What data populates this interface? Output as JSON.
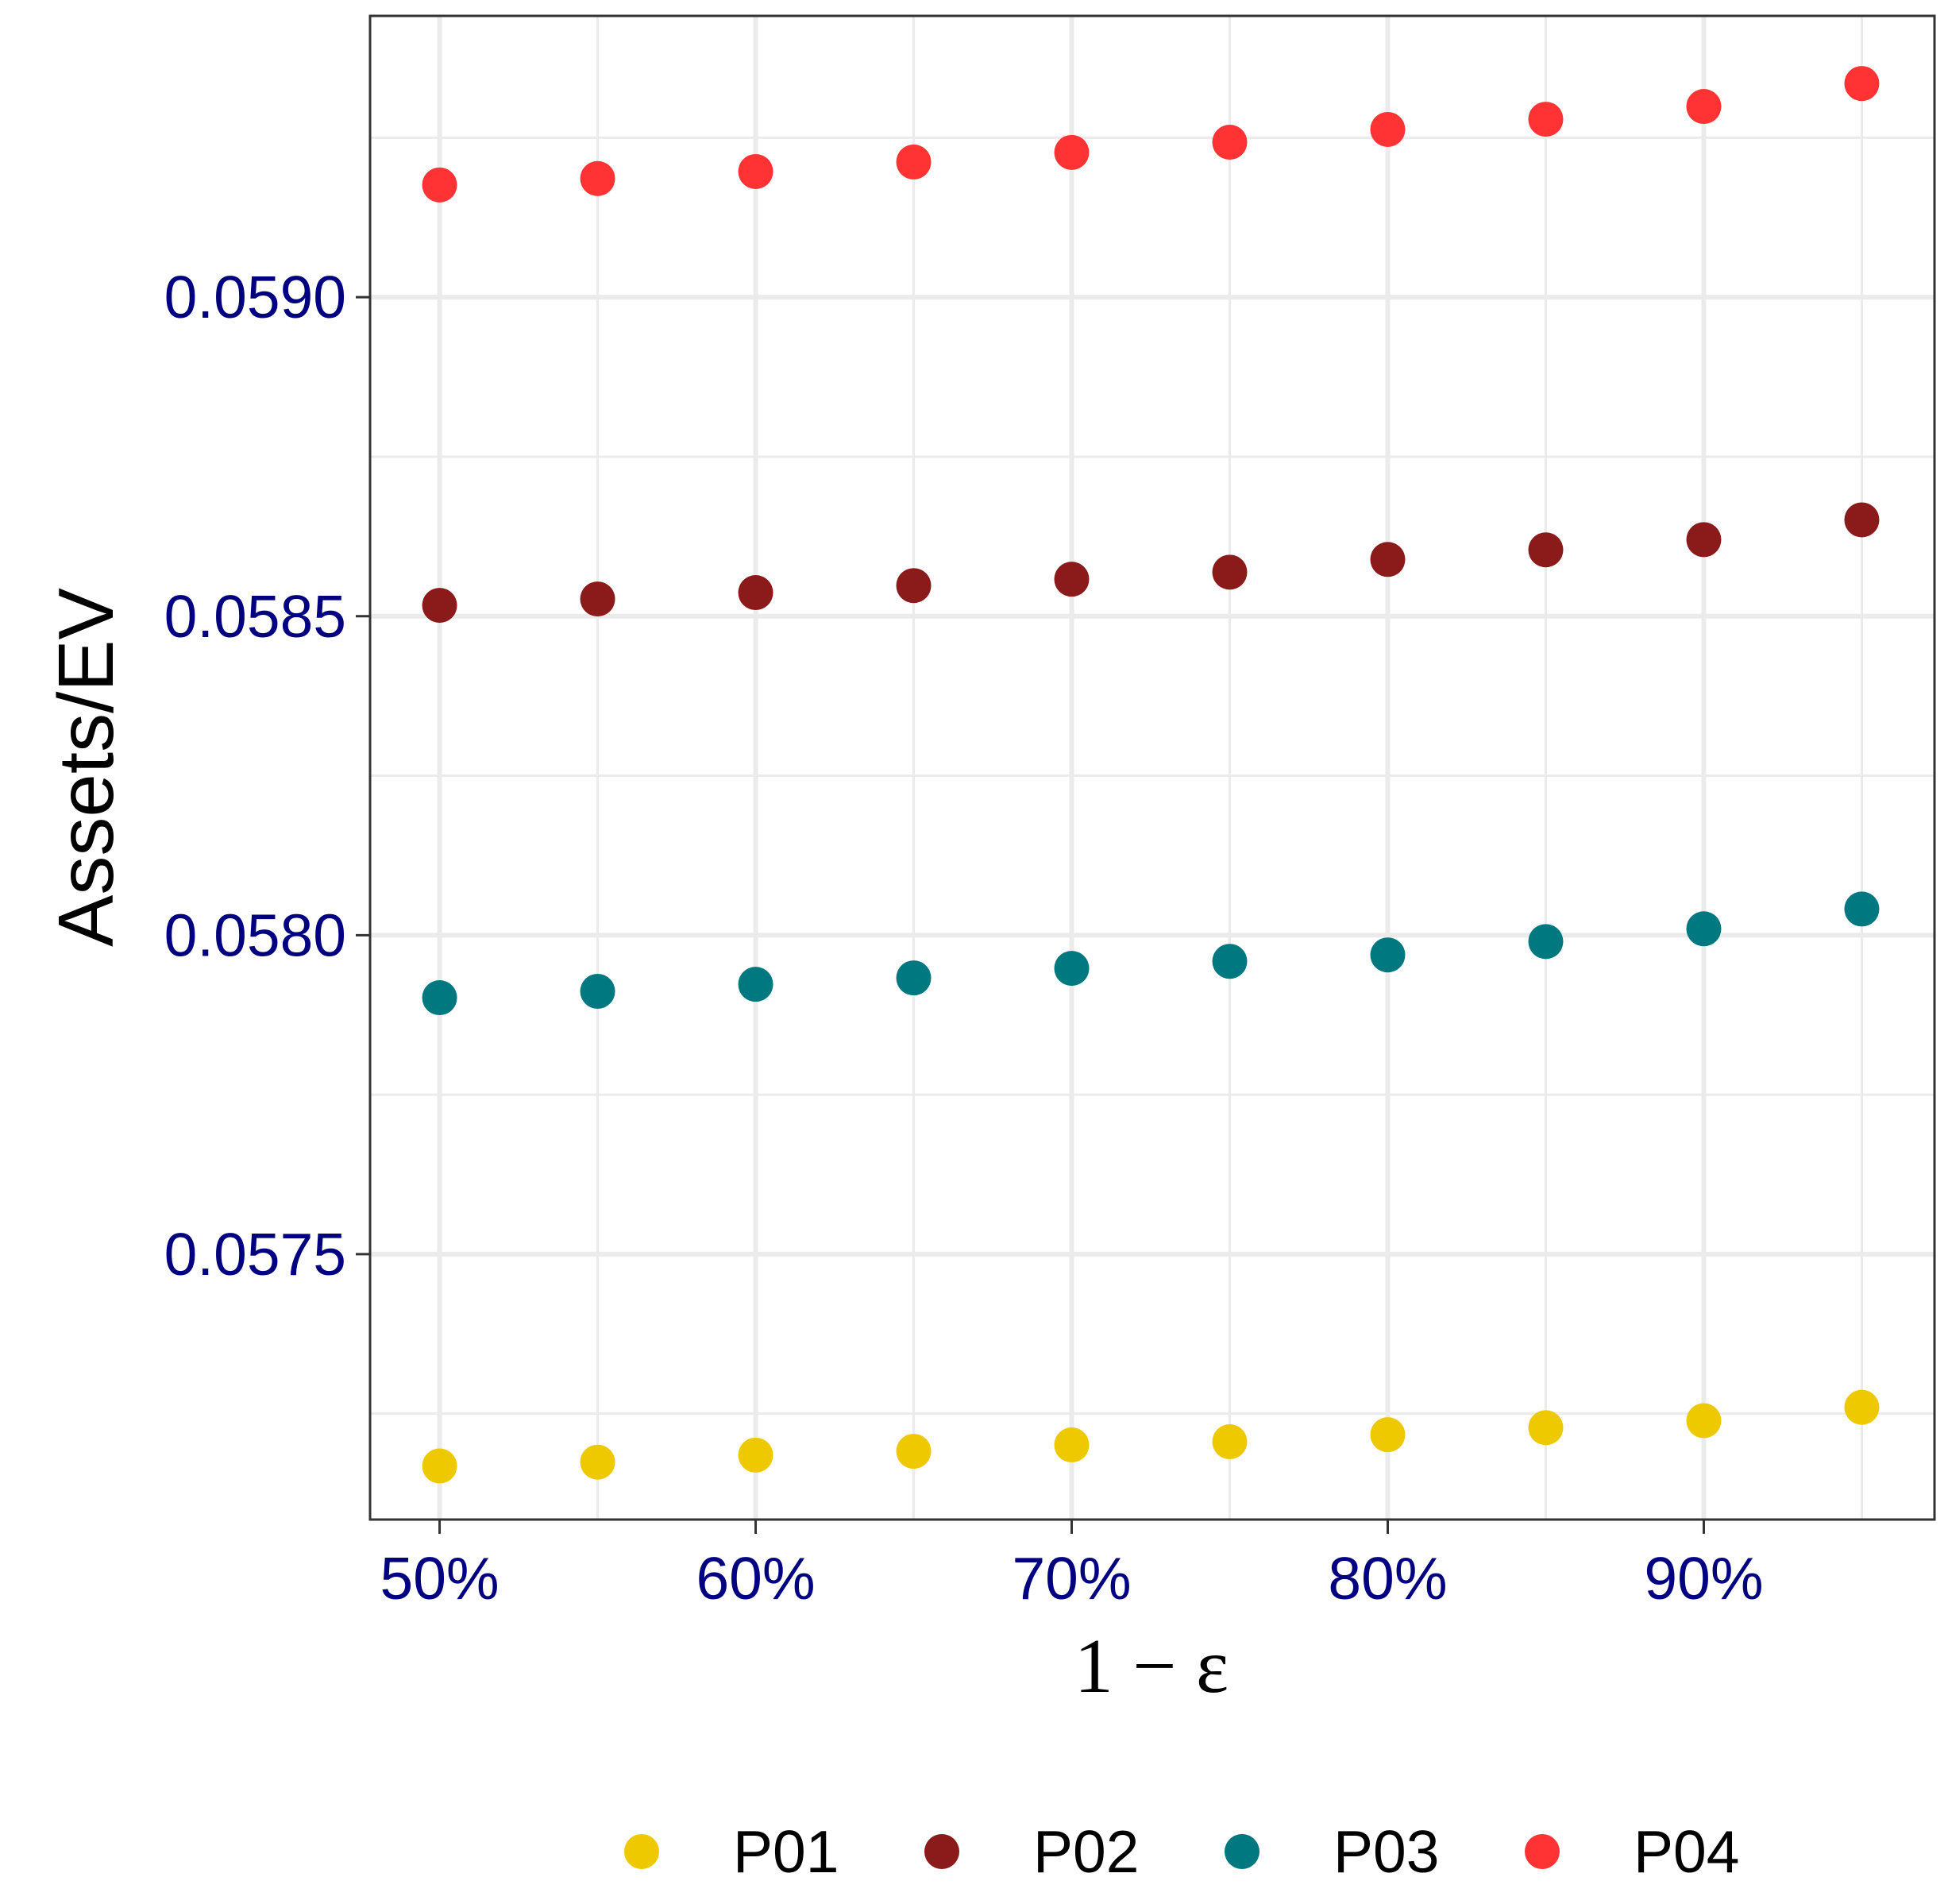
{
  "chart_data": {
    "type": "scatter",
    "title": "",
    "xlabel": "1 − ε",
    "ylabel": "Assets/EV",
    "x": [
      0.5,
      0.55,
      0.6,
      0.65,
      0.7,
      0.75,
      0.8,
      0.85,
      0.9,
      0.95
    ],
    "xlim": [
      0.478,
      0.973
    ],
    "ylim": [
      0.057084,
      0.059441
    ],
    "x_ticks": [
      0.5,
      0.6,
      0.7,
      0.8,
      0.9
    ],
    "x_tick_labels": [
      "50%",
      "60%",
      "70%",
      "80%",
      "90%"
    ],
    "y_ticks": [
      0.0575,
      0.058,
      0.0585,
      0.059
    ],
    "y_tick_labels": [
      "0.0575",
      "0.0580",
      "0.0585",
      "0.0590"
    ],
    "y_minor_ticks": [
      0.05725,
      0.05775,
      0.05825,
      0.05875,
      0.05925
    ],
    "x_minor_ticks": [
      0.55,
      0.65,
      0.75,
      0.85,
      0.95
    ],
    "grid": true,
    "legend_position": "bottom",
    "series": [
      {
        "name": "P01",
        "color": "#EEC900",
        "values": [
          0.057168,
          0.057174,
          0.057185,
          0.057191,
          0.057201,
          0.057206,
          0.057217,
          0.057228,
          0.057239,
          0.05726
        ]
      },
      {
        "name": "P02",
        "color": "#8B1A1A",
        "values": [
          0.058517,
          0.058527,
          0.058537,
          0.058548,
          0.058558,
          0.058569,
          0.058589,
          0.058604,
          0.05862,
          0.058651
        ]
      },
      {
        "name": "P03",
        "color": "#00787F",
        "values": [
          0.057902,
          0.057912,
          0.057923,
          0.057933,
          0.057948,
          0.057959,
          0.057969,
          0.05799,
          0.05801,
          0.058041
        ]
      },
      {
        "name": "P04",
        "color": "#FF3333",
        "values": [
          0.059176,
          0.059186,
          0.059197,
          0.059212,
          0.059227,
          0.059243,
          0.059263,
          0.059279,
          0.059299,
          0.059335
        ]
      }
    ]
  }
}
